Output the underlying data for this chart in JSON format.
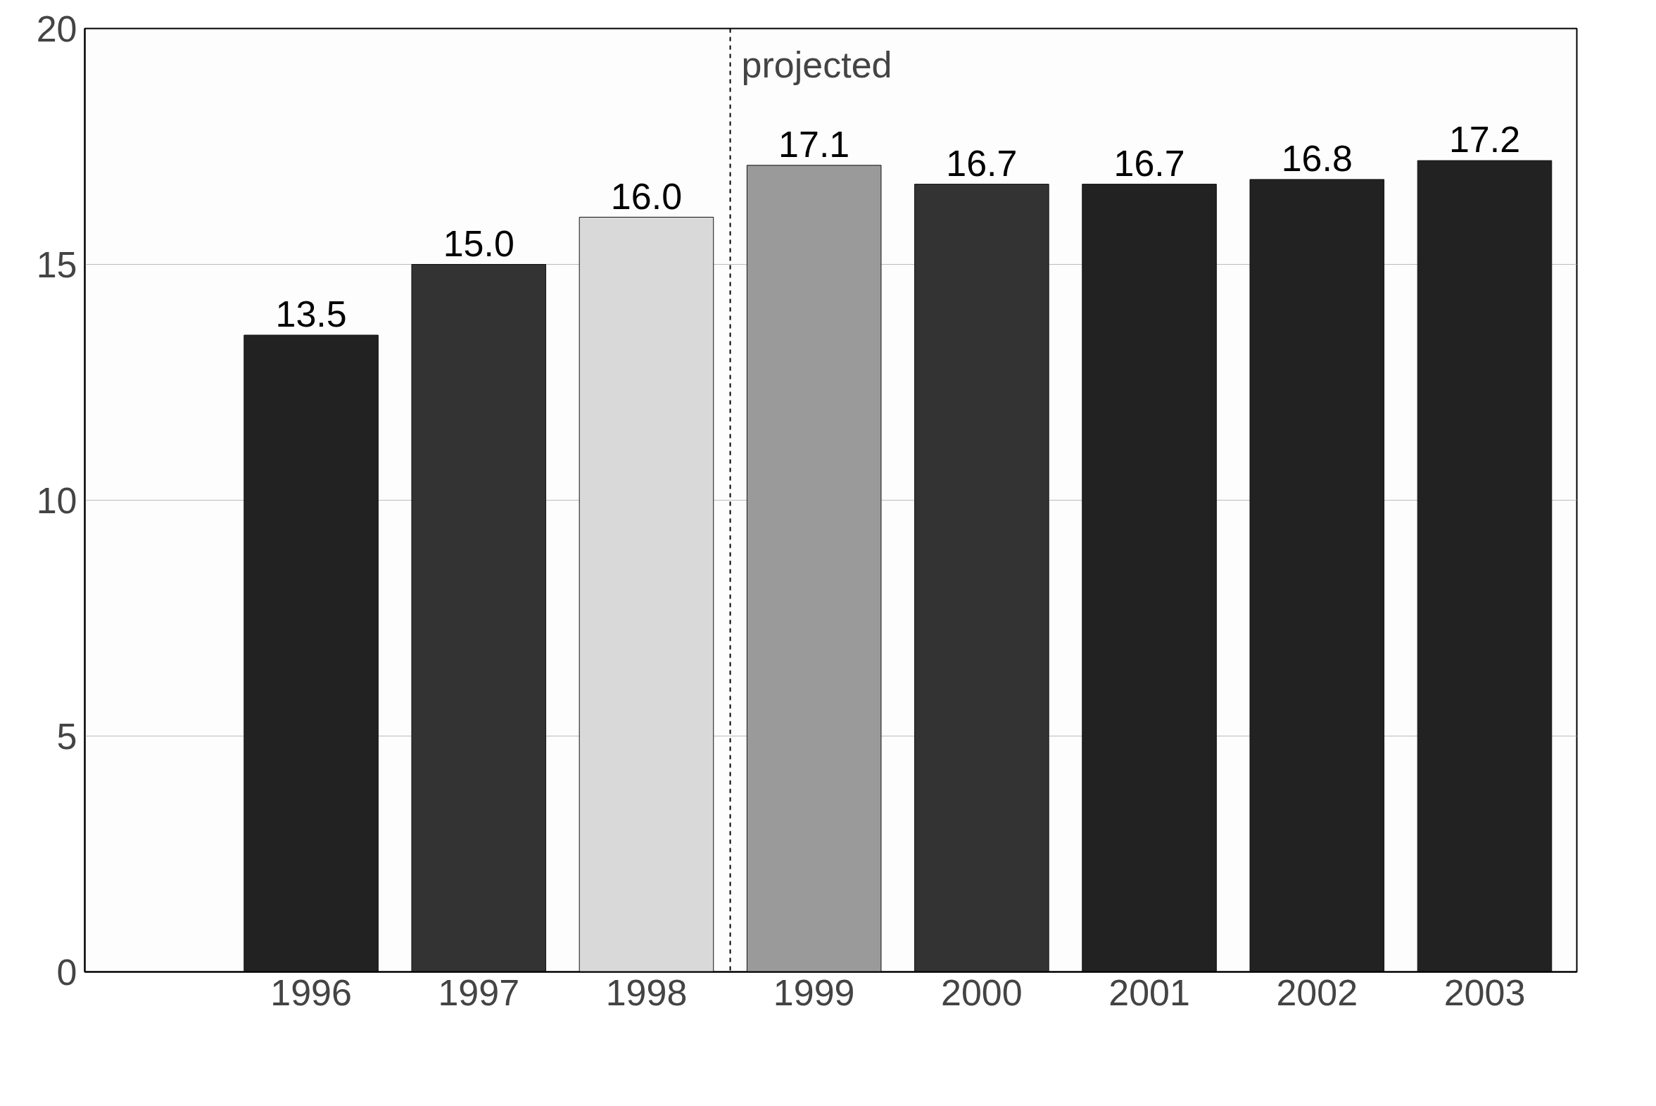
{
  "chart_data": {
    "type": "bar",
    "categories": [
      "1996",
      "1997",
      "1998",
      "1999",
      "2000",
      "2001",
      "2002",
      "2003"
    ],
    "values": [
      13.5,
      15.0,
      16.0,
      17.1,
      16.7,
      16.7,
      16.8,
      17.2
    ],
    "colors": [
      "#222222",
      "#333333",
      "#d9d9d9",
      "#9a9a9a",
      "#333333",
      "#222222",
      "#222222",
      "#222222"
    ],
    "value_labels": [
      "13.5",
      "15.0",
      "16.0",
      "17.1",
      "16.7",
      "16.7",
      "16.8",
      "17.2"
    ],
    "ylim": [
      0,
      20
    ],
    "yticks": [
      0,
      5,
      10,
      15,
      20
    ],
    "grid": "y",
    "ref_lines": [
      {
        "axis": "x",
        "value": "1999",
        "label": "projected",
        "line_style": "dashed"
      }
    ]
  }
}
